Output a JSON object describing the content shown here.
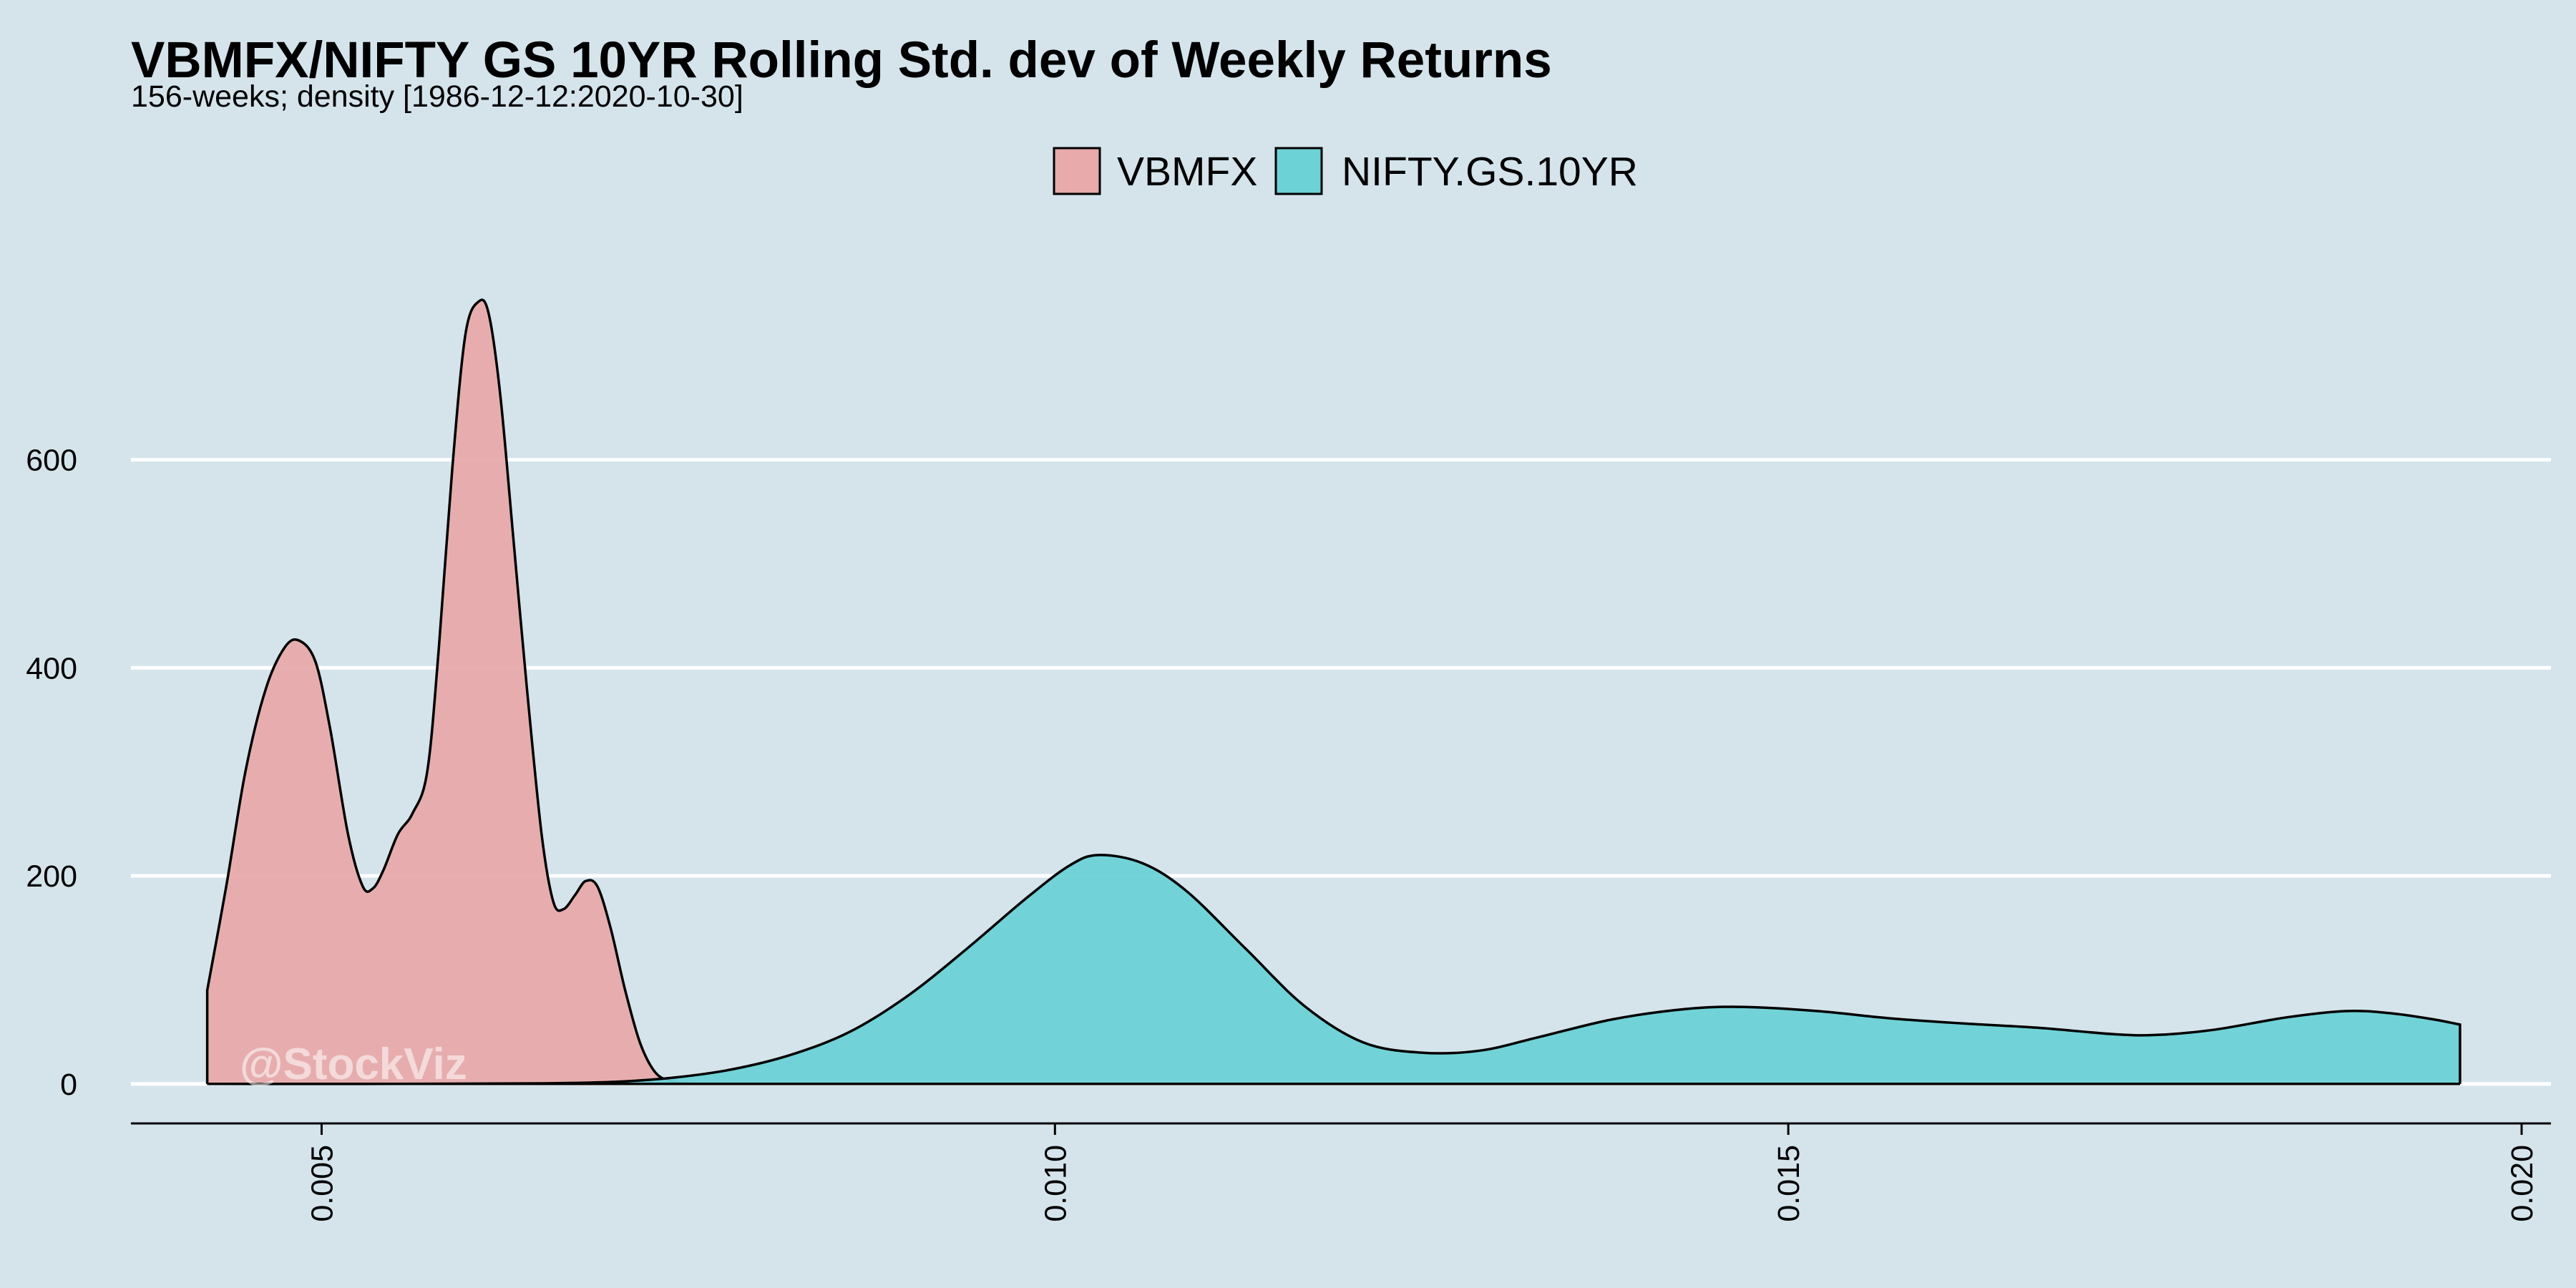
{
  "title": "VBMFX/NIFTY GS 10YR Rolling Std. dev of Weekly Returns",
  "subtitle": "156-weeks; density [1986-12-12:2020-10-30]",
  "watermark": "@StockViz",
  "colors": {
    "background": "#d5e4eb",
    "grid": "#ffffff",
    "VBMFX": "#e8aaab",
    "NIFTY.GS.10YR": "#6cd2d6",
    "outline": "#000000"
  },
  "chart_data": {
    "type": "area",
    "title": "VBMFX/NIFTY GS 10YR Rolling Std. dev of Weekly Returns",
    "subtitle": "156-weeks; density [1986-12-12:2020-10-30]",
    "xlabel": "",
    "ylabel": "",
    "xlim": [
      0.0037,
      0.0202
    ],
    "ylim": [
      -38,
      815
    ],
    "xticks": [
      0.005,
      0.01,
      0.015,
      0.02
    ],
    "xtick_labels": [
      "0.005",
      "0.010",
      "0.015",
      "0.020"
    ],
    "yticks": [
      0,
      200,
      400,
      600
    ],
    "ytick_labels": [
      "0",
      "200",
      "400",
      "600"
    ],
    "grid": "horizontal",
    "legend_position": "top-center",
    "x_tick_label_rotation": "vertical",
    "series": [
      {
        "name": "VBMFX",
        "color": "#e8aaab",
        "points": [
          [
            0.00422,
            90
          ],
          [
            0.00435,
            190
          ],
          [
            0.00448,
            300
          ],
          [
            0.00462,
            380
          ],
          [
            0.00475,
            420
          ],
          [
            0.00485,
            426
          ],
          [
            0.00496,
            405
          ],
          [
            0.00506,
            340
          ],
          [
            0.00518,
            240
          ],
          [
            0.00528,
            190
          ],
          [
            0.00535,
            188
          ],
          [
            0.00542,
            205
          ],
          [
            0.00552,
            240
          ],
          [
            0.00562,
            260
          ],
          [
            0.00572,
            300
          ],
          [
            0.0058,
            420
          ],
          [
            0.00589,
            590
          ],
          [
            0.00598,
            720
          ],
          [
            0.00607,
            752
          ],
          [
            0.00614,
            740
          ],
          [
            0.00622,
            660
          ],
          [
            0.00631,
            520
          ],
          [
            0.0064,
            380
          ],
          [
            0.0065,
            240
          ],
          [
            0.00658,
            175
          ],
          [
            0.00665,
            168
          ],
          [
            0.00673,
            182
          ],
          [
            0.0068,
            195
          ],
          [
            0.00688,
            190
          ],
          [
            0.00697,
            150
          ],
          [
            0.00707,
            90
          ],
          [
            0.00717,
            40
          ],
          [
            0.00727,
            12
          ],
          [
            0.00737,
            3
          ],
          [
            0.0075,
            0.5
          ]
        ]
      },
      {
        "name": "NIFTY.GS.10YR",
        "color": "#6cd2d6",
        "points": [
          [
            0.00422,
            0
          ],
          [
            0.0055,
            0
          ],
          [
            0.0065,
            0.5
          ],
          [
            0.007,
            2
          ],
          [
            0.0074,
            6
          ],
          [
            0.0078,
            14
          ],
          [
            0.0082,
            28
          ],
          [
            0.0086,
            50
          ],
          [
            0.009,
            85
          ],
          [
            0.0094,
            130
          ],
          [
            0.0098,
            178
          ],
          [
            0.0101,
            210
          ],
          [
            0.0103,
            220
          ],
          [
            0.0106,
            212
          ],
          [
            0.0109,
            185
          ],
          [
            0.0113,
            130
          ],
          [
            0.0117,
            75
          ],
          [
            0.0121,
            40
          ],
          [
            0.0125,
            30
          ],
          [
            0.0129,
            32
          ],
          [
            0.0133,
            45
          ],
          [
            0.0138,
            62
          ],
          [
            0.0143,
            72
          ],
          [
            0.0147,
            74
          ],
          [
            0.0152,
            70
          ],
          [
            0.0157,
            63
          ],
          [
            0.0162,
            58
          ],
          [
            0.0167,
            54
          ],
          [
            0.0172,
            48
          ],
          [
            0.0175,
            47
          ],
          [
            0.0179,
            52
          ],
          [
            0.0184,
            64
          ],
          [
            0.0188,
            70
          ],
          [
            0.0191,
            68
          ],
          [
            0.0194,
            62
          ],
          [
            0.01958,
            57
          ]
        ]
      }
    ]
  }
}
